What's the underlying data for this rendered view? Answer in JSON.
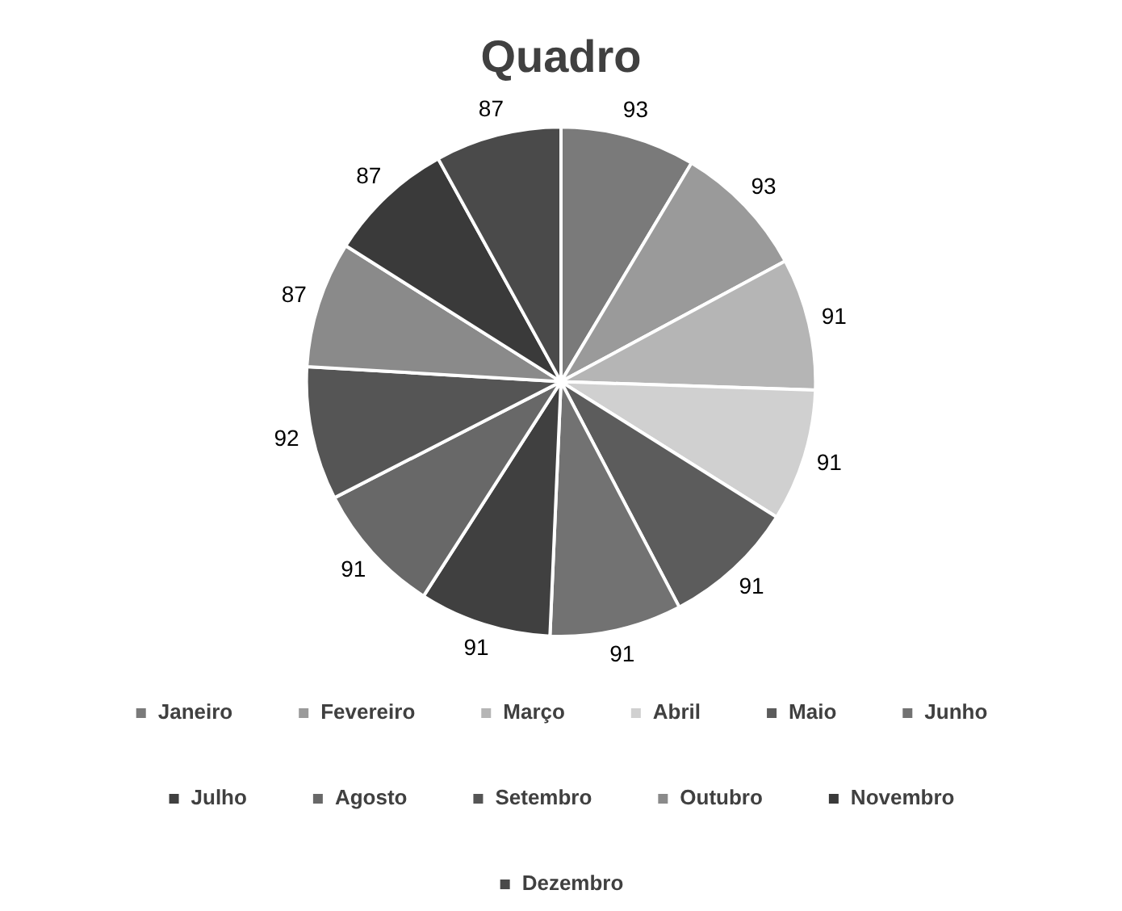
{
  "chart_data": {
    "type": "pie",
    "title": "Quadro",
    "categories": [
      "Janeiro",
      "Fevereiro",
      "Março",
      "Abril",
      "Maio",
      "Junho",
      "Julho",
      "Agosto",
      "Setembro",
      "Outubro",
      "Novembro",
      "Dezembro"
    ],
    "values": [
      93,
      93,
      91,
      91,
      91,
      91,
      91,
      91,
      92,
      87,
      87,
      87
    ],
    "colors": [
      "#7a7a7a",
      "#9a9a9a",
      "#b5b5b5",
      "#d0d0d0",
      "#5c5c5c",
      "#727272",
      "#404040",
      "#686868",
      "#555555",
      "#8a8a8a",
      "#3a3a3a",
      "#4a4a4a"
    ],
    "data_labels": true,
    "legend": "bottom"
  }
}
